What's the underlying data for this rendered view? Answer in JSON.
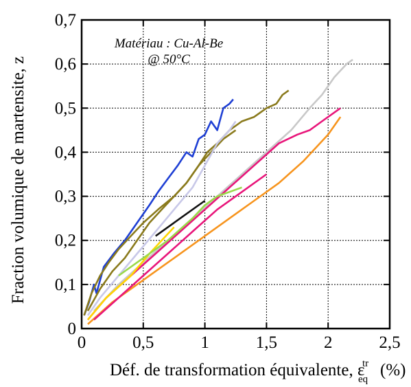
{
  "chart_data": {
    "type": "line",
    "ylabel": "Fraction volumique de martensite, z",
    "xlabel_text": "Déf. de transformation équivalente, ε",
    "xlabel_sup": "tr",
    "xlabel_sub": "eq",
    "xlabel_unit": "(%)",
    "annotation": [
      "Matériau : Cu-Al-Be",
      "@ 50°C"
    ],
    "xlim": [
      0,
      2.5
    ],
    "ylim": [
      0,
      0.7
    ],
    "xticks": [
      0,
      0.5,
      1,
      1.5,
      2,
      2.5
    ],
    "xtick_labels": [
      "0",
      "0,5",
      "1",
      "1,5",
      "2",
      "2,5"
    ],
    "yticks": [
      0,
      0.1,
      0.2,
      0.3,
      0.4,
      0.5,
      0.6,
      0.7
    ],
    "ytick_labels": [
      "0",
      "0,1",
      "0,2",
      "0,3",
      "0,4",
      "0,5",
      "0,6",
      "0,7"
    ],
    "grid": "dashed-major",
    "legend": "none",
    "series": [
      {
        "color": "#1e3fd4",
        "x": [
          0.02,
          0.06,
          0.1,
          0.12,
          0.18,
          0.26,
          0.35,
          0.45,
          0.55,
          0.62,
          0.7,
          0.78,
          0.85,
          0.9,
          0.95,
          1.0,
          1.05,
          1.1,
          1.15,
          1.2,
          1.23
        ],
        "y": [
          0.03,
          0.06,
          0.1,
          0.08,
          0.14,
          0.17,
          0.2,
          0.24,
          0.28,
          0.31,
          0.34,
          0.37,
          0.4,
          0.39,
          0.43,
          0.44,
          0.47,
          0.45,
          0.5,
          0.51,
          0.52
        ]
      },
      {
        "color": "#8a7a1c",
        "x": [
          0.02,
          0.08,
          0.15,
          0.22,
          0.3,
          0.4,
          0.5,
          0.62,
          0.75,
          0.85,
          0.95,
          1.02,
          1.1,
          1.2,
          1.3,
          1.4,
          1.5,
          1.58,
          1.63,
          1.68
        ],
        "y": [
          0.03,
          0.08,
          0.12,
          0.15,
          0.18,
          0.21,
          0.24,
          0.27,
          0.3,
          0.33,
          0.37,
          0.4,
          0.42,
          0.45,
          0.47,
          0.48,
          0.5,
          0.51,
          0.53,
          0.54
        ]
      },
      {
        "color": "#8a7a1c",
        "x": [
          0.05,
          0.15,
          0.25,
          0.35,
          0.45,
          0.55,
          0.65,
          0.75,
          0.85,
          0.95,
          1.05,
          1.15,
          1.25
        ],
        "y": [
          0.04,
          0.09,
          0.13,
          0.16,
          0.2,
          0.24,
          0.27,
          0.3,
          0.33,
          0.37,
          0.4,
          0.43,
          0.45
        ]
      },
      {
        "color": "#c8c8e8",
        "x": [
          0.05,
          0.15,
          0.3,
          0.45,
          0.6,
          0.75,
          0.9,
          1.0,
          1.1,
          1.2,
          1.25
        ],
        "y": [
          0.03,
          0.07,
          0.12,
          0.17,
          0.22,
          0.27,
          0.32,
          0.37,
          0.42,
          0.45,
          0.47
        ]
      },
      {
        "color": "#c8c8c8",
        "x": [
          0.1,
          0.3,
          0.5,
          0.7,
          0.9,
          1.1,
          1.3,
          1.5,
          1.7,
          1.85,
          1.95,
          2.05,
          2.15,
          2.2
        ],
        "y": [
          0.04,
          0.1,
          0.15,
          0.2,
          0.25,
          0.3,
          0.35,
          0.4,
          0.45,
          0.5,
          0.53,
          0.57,
          0.6,
          0.61
        ]
      },
      {
        "color": "#e8157a",
        "x": [
          0.05,
          0.2,
          0.4,
          0.6,
          0.8,
          1.0,
          1.2,
          1.4,
          1.6,
          1.75,
          1.85,
          1.95,
          2.05,
          2.1
        ],
        "y": [
          0.02,
          0.07,
          0.12,
          0.17,
          0.22,
          0.27,
          0.32,
          0.37,
          0.42,
          0.44,
          0.45,
          0.47,
          0.49,
          0.5
        ]
      },
      {
        "color": "#f7941d",
        "x": [
          0.05,
          0.25,
          0.5,
          0.75,
          1.0,
          1.25,
          1.4,
          1.6,
          1.8,
          2.0,
          2.1
        ],
        "y": [
          0.01,
          0.06,
          0.11,
          0.16,
          0.21,
          0.26,
          0.29,
          0.33,
          0.38,
          0.44,
          0.48
        ]
      },
      {
        "color": "#ffd700",
        "x": [
          0.05,
          0.2,
          0.4,
          0.55,
          0.65,
          0.75
        ],
        "y": [
          0.02,
          0.07,
          0.12,
          0.17,
          0.2,
          0.23
        ]
      },
      {
        "color": "#9ad94a",
        "x": [
          0.3,
          0.5,
          0.7,
          0.9,
          1.0,
          1.1,
          1.3
        ],
        "y": [
          0.12,
          0.16,
          0.2,
          0.25,
          0.28,
          0.3,
          0.32
        ]
      },
      {
        "color": "#e8157a",
        "x": [
          0.1,
          0.3,
          0.5,
          0.7,
          0.9,
          1.1,
          1.3,
          1.5
        ],
        "y": [
          0.02,
          0.07,
          0.12,
          0.17,
          0.22,
          0.27,
          0.31,
          0.35
        ]
      },
      {
        "color": "#111111",
        "x": [
          0.6,
          0.8,
          1.0
        ],
        "y": [
          0.21,
          0.25,
          0.29
        ]
      }
    ]
  }
}
